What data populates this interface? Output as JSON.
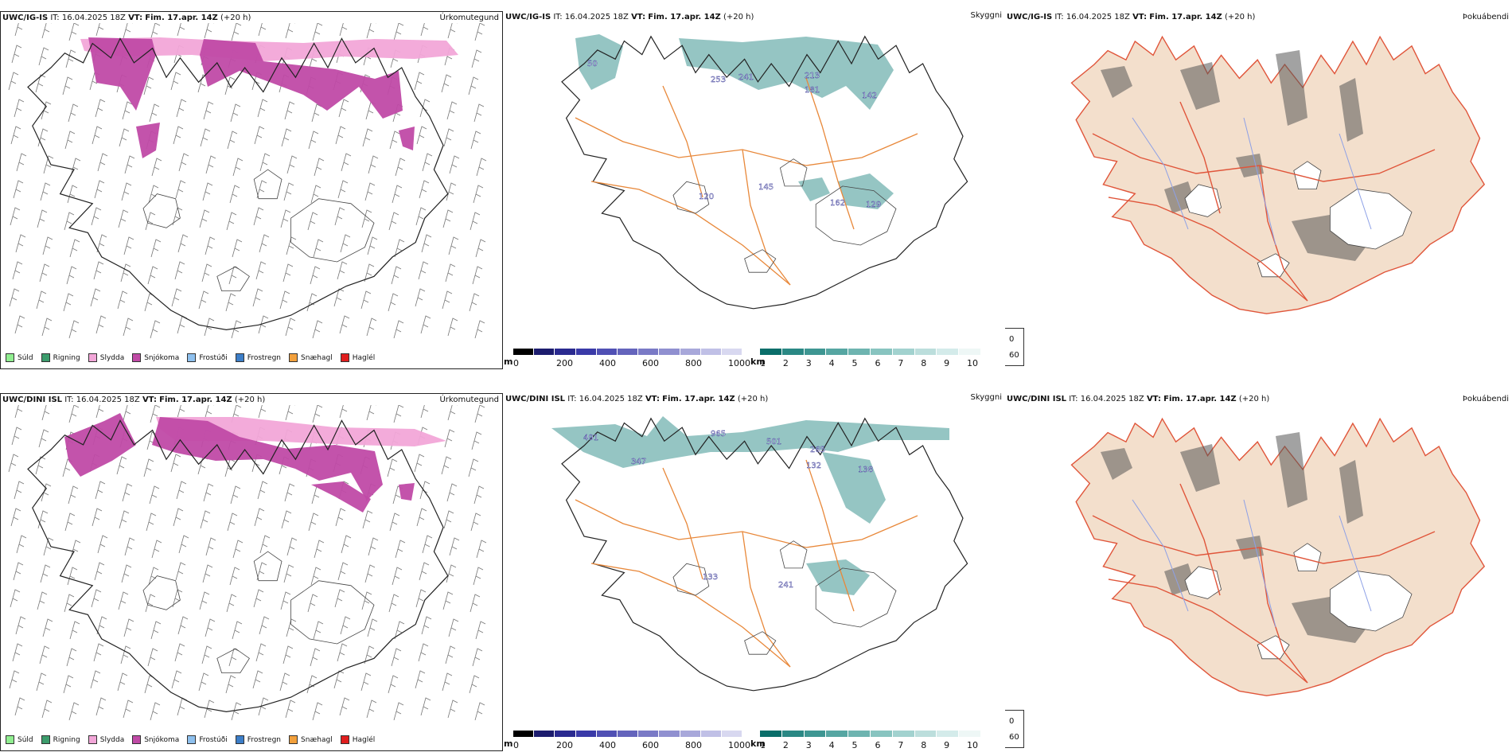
{
  "rows": [
    {
      "model": "UWC/IG-IS",
      "it_label": "IT:",
      "it_value": "16.04.2025 18Z",
      "vt_label": "VT:",
      "vt_value": "Fim. 17.apr. 14Z",
      "lead": "(+20 h)"
    },
    {
      "model": "UWC/DINI ISL",
      "it_label": "IT:",
      "it_value": "16.04.2025 18Z",
      "vt_label": "VT:",
      "vt_value": "Fim. 17.apr. 14Z",
      "lead": "(+20 h)"
    }
  ],
  "panel_titles": {
    "precip": "Úrkomutegund",
    "cloud": "Skyggni",
    "fog": "Þokuábendi"
  },
  "precip_legend": [
    {
      "label": "Súld",
      "color": "#90ee90"
    },
    {
      "label": "Rigning",
      "color": "#3c9c6c"
    },
    {
      "label": "Slydda",
      "color": "#f2a6d8"
    },
    {
      "label": "Snjókoma",
      "color": "#c04aa6"
    },
    {
      "label": "Frostúði",
      "color": "#8ec0ee"
    },
    {
      "label": "Frostregn",
      "color": "#3c7ec8"
    },
    {
      "label": "Snæhagl",
      "color": "#f2a03c"
    },
    {
      "label": "Haglél",
      "color": "#e01e1e"
    }
  ],
  "ceiling_scale": {
    "unit": "m",
    "ticks": [
      "0",
      "200",
      "400",
      "600",
      "800",
      "1000"
    ],
    "colors": [
      "#000000",
      "#1c1c6e",
      "#2a2a90",
      "#3a3aa8",
      "#5050b4",
      "#6464bc",
      "#7a7ac6",
      "#9090d0",
      "#a8a8da",
      "#c0c0e6",
      "#d8d8f0"
    ]
  },
  "visibility_scale": {
    "unit": "km",
    "ticks": [
      "1",
      "2",
      "3",
      "4",
      "5",
      "6",
      "7",
      "8",
      "9",
      "10"
    ],
    "colors": [
      "#0a6e6a",
      "#2a8884",
      "#3e9692",
      "#56a6a2",
      "#6eb4b0",
      "#88c4c0",
      "#a2d2cf",
      "#bcdedc",
      "#d4ebea",
      "#eef7f6"
    ]
  },
  "fog_legend": [
    {
      "label": "0",
      "color": "#000000"
    },
    {
      "label": "60",
      "color": "#ffffff"
    }
  ],
  "ceiling_labels": {
    "top": [
      "50",
      "253",
      "241",
      "213",
      "181",
      "142",
      "120",
      "145",
      "162",
      "129"
    ],
    "bottom": [
      "491",
      "965",
      "501",
      "265",
      "132",
      "347",
      "138",
      "133",
      "241"
    ]
  }
}
